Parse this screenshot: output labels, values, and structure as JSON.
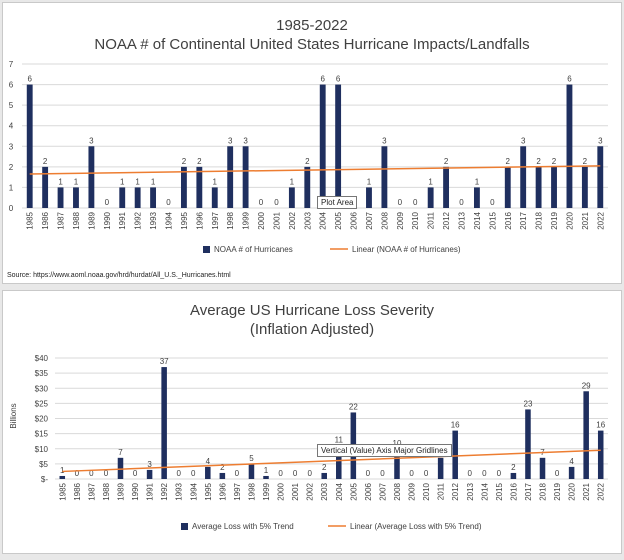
{
  "chart_data": [
    {
      "type": "bar",
      "title": "1985-2022",
      "subtitle": "NOAA # of Continental United States Hurricane Impacts/Landfalls",
      "ylim": [
        0,
        7
      ],
      "yticks": [
        "0",
        "1",
        "2",
        "3",
        "4",
        "5",
        "6",
        "7"
      ],
      "categories": [
        "1985",
        "1986",
        "1987",
        "1988",
        "1989",
        "1990",
        "1991",
        "1992",
        "1993",
        "1994",
        "1995",
        "1996",
        "1997",
        "1998",
        "1999",
        "2000",
        "2001",
        "2002",
        "2003",
        "2004",
        "2005",
        "2006",
        "2007",
        "2008",
        "2009",
        "2010",
        "2011",
        "2012",
        "2013",
        "2014",
        "2015",
        "2016",
        "2017",
        "2018",
        "2019",
        "2020",
        "2021",
        "2022"
      ],
      "series": [
        {
          "name": "NOAA # of Hurricanes",
          "type": "bar",
          "color": "#1f2f5f",
          "values": [
            6,
            2,
            1,
            1,
            3,
            0,
            1,
            1,
            1,
            0,
            2,
            2,
            1,
            3,
            3,
            0,
            0,
            1,
            2,
            6,
            6,
            0,
            1,
            3,
            0,
            0,
            1,
            2,
            0,
            1,
            0,
            2,
            3,
            2,
            2,
            6,
            2,
            3
          ]
        },
        {
          "name": "Linear (NOAA # of Hurricanes)",
          "type": "trendline",
          "color": "#ed7d31",
          "start": 1.65,
          "end": 2.05
        }
      ],
      "grid": true,
      "legend": "bottom",
      "tooltip": "Plot Area",
      "source": "Source: https://www.aoml.noaa.gov/hrd/hurdat/All_U.S._Hurricanes.html"
    },
    {
      "type": "bar",
      "title": "Average US Hurricane Loss Severity",
      "subtitle": "(Inflation Adjusted)",
      "ylabel": "Billions",
      "ylim": [
        0,
        40
      ],
      "yticks": [
        "$-",
        "$5",
        "$10",
        "$15",
        "$20",
        "$25",
        "$30",
        "$35",
        "$40"
      ],
      "categories": [
        "1985",
        "1986",
        "1987",
        "1988",
        "1989",
        "1990",
        "1991",
        "1992",
        "1993",
        "1994",
        "1995",
        "1996",
        "1997",
        "1998",
        "1999",
        "2000",
        "2001",
        "2002",
        "2003",
        "2004",
        "2005",
        "2006",
        "2007",
        "2008",
        "2009",
        "2010",
        "2011",
        "2012",
        "2013",
        "2014",
        "2015",
        "2016",
        "2017",
        "2018",
        "2019",
        "2020",
        "2021",
        "2022"
      ],
      "series": [
        {
          "name": "Average Loss with 5% Trend",
          "type": "bar",
          "color": "#1f2f5f",
          "values": [
            1,
            0,
            0,
            0,
            7,
            0,
            3,
            37,
            0,
            0,
            4,
            2,
            0,
            5,
            1,
            0,
            0,
            0,
            2,
            11,
            22,
            0,
            0,
            10,
            0,
            0,
            7,
            16,
            0,
            0,
            0,
            2,
            23,
            7,
            0,
            4,
            29,
            16
          ]
        },
        {
          "name": "Linear (Average Loss with 5% Trend)",
          "type": "trendline",
          "color": "#ed7d31",
          "start": 2.5,
          "end": 9.5
        }
      ],
      "grid": true,
      "legend": "bottom",
      "tooltip": "Vertical (Value) Axis Major Gridlines"
    }
  ]
}
